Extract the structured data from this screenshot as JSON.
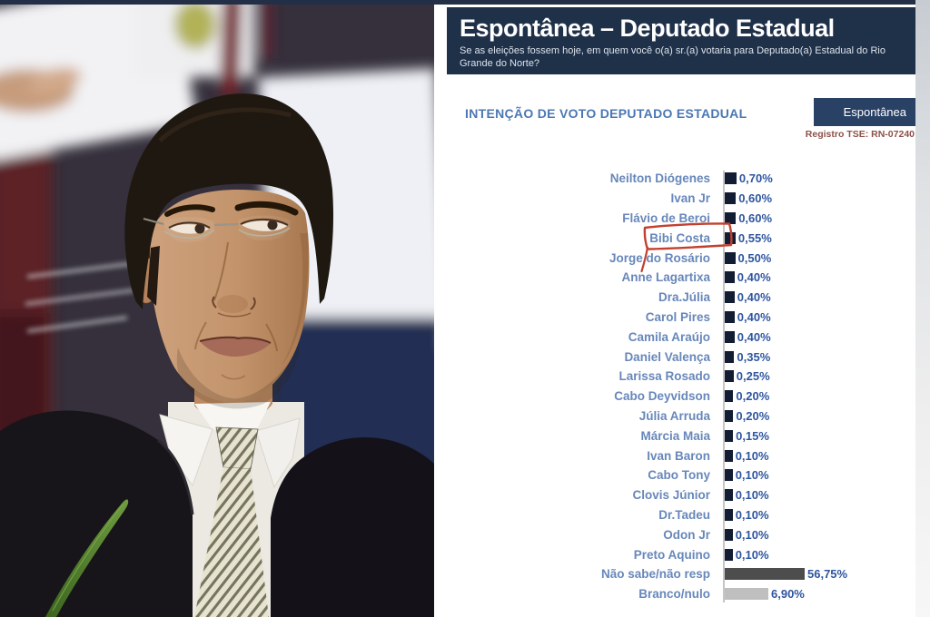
{
  "header": {
    "title": "Espontânea – Deputado Estadual",
    "subtitle": "Se as eleições fossem hoje, em quem você o(a) sr.(a) votaria para Deputado(a) Estadual do Rio Grande do Norte?"
  },
  "section": {
    "title": "INTENÇÃO DE VOTO DEPUTADO ESTADUAL",
    "badge_label": "Espontânea",
    "registro": "Registro TSE: RN-07240"
  },
  "colors": {
    "header_bg": "#1f3049",
    "badge_bg": "#2a4166",
    "section_title_blue": "#4b77b3",
    "label_blue": "#6787ba",
    "value_blue": "#2e55a0",
    "bar_navy": "#121c33",
    "bar_dark_gray": "#4d4d4d",
    "bar_light_gray": "#bfbfbf",
    "annotation_red": "#c2402f",
    "registro_red": "#8c5149"
  },
  "chart_data": {
    "type": "bar",
    "orientation": "horizontal",
    "title": "INTENÇÃO DE VOTO DEPUTADO ESTADUAL",
    "unit": "%",
    "decimal_separator": ",",
    "highlighted_category": "Bibi Costa",
    "highlight_style": "hand-drawn red rectangle around label",
    "categories": [
      "Neilton Diógenes",
      "Ivan Jr",
      "Flávio de Beroi",
      "Bibi Costa",
      "Jorge do Rosário",
      "Anne Lagartixa",
      "Dra.Júlia",
      "Carol Pires",
      "Camila Araújo",
      "Daniel Valença",
      "Larissa Rosado",
      "Cabo Deyvidson",
      "Júlia Arruda",
      "Márcia Maia",
      "Ivan Baron",
      "Cabo Tony",
      "Clovis Júnior",
      "Dr.Tadeu",
      "Odon Jr",
      "Preto Aquino",
      "Não sabe/não resp",
      "Branco/nulo"
    ],
    "values": [
      0.7,
      0.6,
      0.6,
      0.55,
      0.5,
      0.4,
      0.4,
      0.4,
      0.4,
      0.35,
      0.25,
      0.2,
      0.2,
      0.15,
      0.1,
      0.1,
      0.1,
      0.1,
      0.1,
      0.1,
      56.75,
      6.9
    ],
    "value_labels": [
      "0,70%",
      "0,60%",
      "0,60%",
      "0,55%",
      "0,50%",
      "0,40%",
      "0,40%",
      "0,40%",
      "0,40%",
      "0,35%",
      "0,25%",
      "0,20%",
      "0,20%",
      "0,15%",
      "0,10%",
      "0,10%",
      "0,10%",
      "0,10%",
      "0,10%",
      "0,10%",
      "56,75%",
      "6,90%"
    ],
    "bar_color_overrides": {
      "Não sabe/não resp": "#4d4d4d",
      "Branco/nulo": "#bfbfbf"
    },
    "legend": "none",
    "grid": "off",
    "axis_line": "vertical light gray at zero"
  }
}
